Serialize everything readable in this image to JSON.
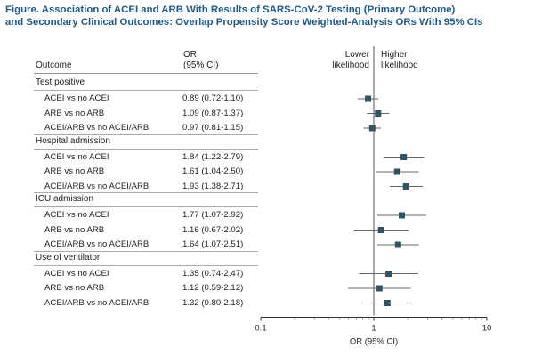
{
  "title_line1": "Figure. Association of ACEI and ARB With Results of SARS-CoV-2 Testing (Primary Outcome)",
  "title_line2": "and Secondary Clinical Outcomes: Overlap Propensity Score Weighted-Analysis ORs With 95% CIs",
  "header": {
    "outcome": "Outcome",
    "or_line1": "OR",
    "or_line2": "(95% CI)",
    "lower_line1": "Lower",
    "lower_line2": "likelihood",
    "higher_line1": "Higher",
    "higher_line2": "likelihood"
  },
  "chart_data": {
    "type": "forest",
    "xscale": "log",
    "xlabel": "OR (95% CI)",
    "xlim": [
      0.1,
      10
    ],
    "xticks": [
      "0.1",
      "1",
      "10"
    ],
    "reference_line": 1,
    "marker_color": "#2e5566",
    "groups": [
      {
        "name": "Test positive",
        "rows": [
          {
            "label": "ACEI vs no ACEI",
            "ci_text": "0.89 (0.72-1.10)",
            "or": 0.89,
            "lo": 0.72,
            "hi": 1.1
          },
          {
            "label": "ARB vs no ARB",
            "ci_text": "1.09 (0.87-1.37)",
            "or": 1.09,
            "lo": 0.87,
            "hi": 1.37
          },
          {
            "label": "ACEI/ARB vs no ACEI/ARB",
            "ci_text": "0.97 (0.81-1.15)",
            "or": 0.97,
            "lo": 0.81,
            "hi": 1.15
          }
        ]
      },
      {
        "name": "Hospital admission",
        "rows": [
          {
            "label": "ACEI vs no ACEI",
            "ci_text": "1.84 (1.22-2.79)",
            "or": 1.84,
            "lo": 1.22,
            "hi": 2.79
          },
          {
            "label": "ARB vs no ARB",
            "ci_text": "1.61 (1.04-2.50)",
            "or": 1.61,
            "lo": 1.04,
            "hi": 2.5
          },
          {
            "label": "ACEI/ARB vs no ACEI/ARB",
            "ci_text": "1.93 (1.38-2.71)",
            "or": 1.93,
            "lo": 1.38,
            "hi": 2.71
          }
        ]
      },
      {
        "name": "ICU admission",
        "rows": [
          {
            "label": "ACEI vs no ACEI",
            "ci_text": "1.77 (1.07-2.92)",
            "or": 1.77,
            "lo": 1.07,
            "hi": 2.92
          },
          {
            "label": "ARB vs no ARB",
            "ci_text": "1.16 (0.67-2.02)",
            "or": 1.16,
            "lo": 0.67,
            "hi": 2.02
          },
          {
            "label": "ACEI/ARB vs no ACEI/ARB",
            "ci_text": "1.64 (1.07-2.51)",
            "or": 1.64,
            "lo": 1.07,
            "hi": 2.51
          }
        ]
      },
      {
        "name": "Use of ventilator",
        "rows": [
          {
            "label": "ACEI vs no ACEI",
            "ci_text": "1.35 (0.74-2.47)",
            "or": 1.35,
            "lo": 0.74,
            "hi": 2.47
          },
          {
            "label": "ARB vs no ARB",
            "ci_text": "1.12 (0.59-2.12)",
            "or": 1.12,
            "lo": 0.59,
            "hi": 2.12
          },
          {
            "label": "ACEI/ARB vs no ACEI/ARB",
            "ci_text": "1.32 (0.80-2.18)",
            "or": 1.32,
            "lo": 0.8,
            "hi": 2.18
          }
        ]
      }
    ]
  }
}
